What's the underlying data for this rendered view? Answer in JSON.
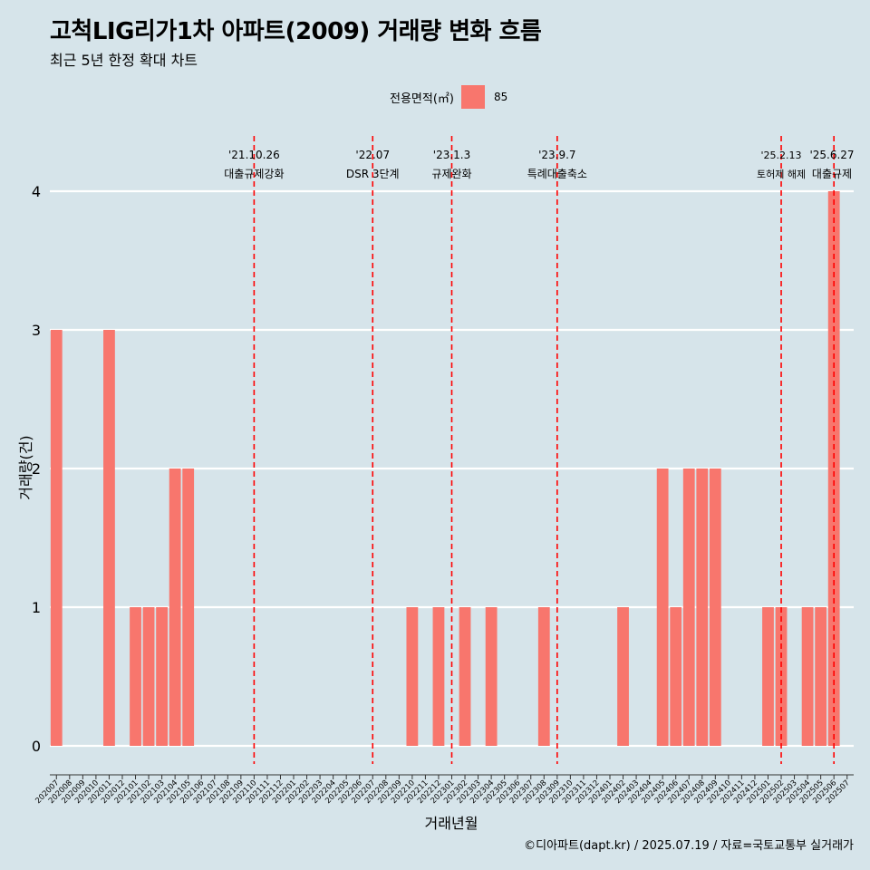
{
  "header": {
    "title": "고척LIG리가1차 아파트(2009) 거래량 변화 흐름",
    "subtitle": "최근 5년 한정 확대 차트"
  },
  "legend": {
    "title": "전용면적(㎡)",
    "items": [
      {
        "label": "85",
        "color": "#f8766d"
      }
    ]
  },
  "footer": {
    "credit": "©디아파트(dapt.kr) / 2025.07.19 / 자료=국토교통부 실거래가"
  },
  "colors": {
    "background": "#d6e4ea",
    "bar": "#f8766d",
    "event_line": "#ff0000",
    "grid": "#ffffff"
  },
  "chart_data": {
    "type": "bar",
    "title": "고척LIG리가1차 아파트(2009) 거래량 변화 흐름",
    "subtitle": "최근 5년 한정 확대 차트",
    "xlabel": "거래년월",
    "ylabel": "거래량(건)",
    "ylim": [
      0,
      4
    ],
    "yticks": [
      0,
      1,
      2,
      3,
      4
    ],
    "grid": true,
    "legend_position": "top",
    "categories": [
      "202007",
      "202008",
      "202009",
      "202010",
      "202011",
      "202012",
      "202101",
      "202102",
      "202103",
      "202104",
      "202105",
      "202106",
      "202107",
      "202108",
      "202109",
      "202110",
      "202111",
      "202112",
      "202201",
      "202202",
      "202203",
      "202204",
      "202205",
      "202206",
      "202207",
      "202208",
      "202209",
      "202210",
      "202211",
      "202212",
      "202301",
      "202302",
      "202303",
      "202304",
      "202305",
      "202306",
      "202307",
      "202308",
      "202309",
      "202310",
      "202311",
      "202312",
      "202401",
      "202402",
      "202403",
      "202404",
      "202405",
      "202406",
      "202407",
      "202408",
      "202409",
      "202410",
      "202411",
      "202412",
      "202501",
      "202502",
      "202503",
      "202504",
      "202505",
      "202506",
      "202507"
    ],
    "series": [
      {
        "name": "85",
        "values": [
          3,
          0,
          0,
          0,
          3,
          0,
          1,
          1,
          1,
          2,
          2,
          0,
          0,
          0,
          0,
          0,
          0,
          0,
          0,
          0,
          0,
          0,
          0,
          0,
          0,
          0,
          0,
          1,
          0,
          1,
          0,
          1,
          0,
          1,
          0,
          0,
          0,
          1,
          0,
          0,
          0,
          0,
          0,
          1,
          0,
          0,
          2,
          1,
          2,
          2,
          2,
          0,
          0,
          0,
          1,
          1,
          0,
          1,
          1,
          4,
          0
        ]
      }
    ],
    "events": [
      {
        "x": "202110",
        "date": "'21.10.26",
        "label": "대출규제강화"
      },
      {
        "x": "202207",
        "date": "'22.07",
        "label": "DSR 3단계"
      },
      {
        "x": "202301",
        "date": "'23.1.3",
        "label": "규제완화"
      },
      {
        "x": "202309",
        "date": "'23.9.7",
        "label": "특례대출축소"
      },
      {
        "x": "202502",
        "date": "'25.2.13",
        "label": "토허제 해제"
      },
      {
        "x": "202506",
        "date": "'25.6.27",
        "label": "대출규제"
      }
    ]
  }
}
